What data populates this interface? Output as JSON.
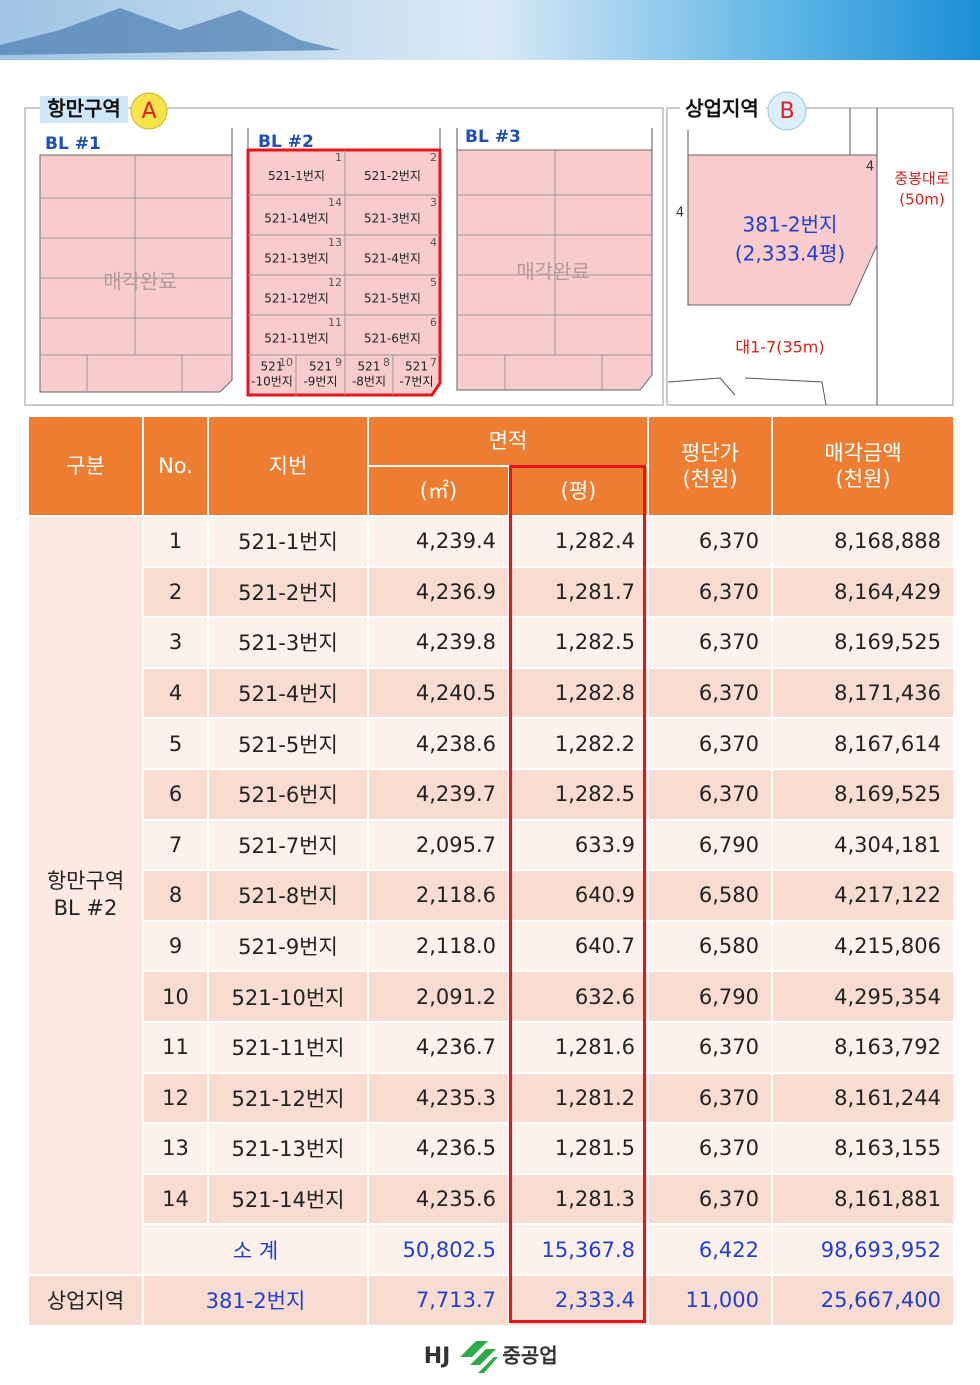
{
  "map_a": {
    "label": "항만구역",
    "badge": "A",
    "blocks": [
      {
        "name": "BL #1",
        "status": "매각완료"
      },
      {
        "name": "BL #2"
      },
      {
        "name": "BL #3",
        "status": "매각완료"
      }
    ],
    "lots": [
      {
        "number": "1",
        "label": [
          "521-1번지"
        ]
      },
      {
        "number": "2",
        "label": [
          "521-2번지"
        ]
      },
      {
        "number": "3",
        "label": [
          "521-3번지"
        ]
      },
      {
        "number": "4",
        "label": [
          "521-4번지"
        ]
      },
      {
        "number": "5",
        "label": [
          "521-5번지"
        ]
      },
      {
        "number": "6",
        "label": [
          "521-6번지"
        ]
      },
      {
        "number": "7",
        "label": [
          "521",
          "-7번지"
        ]
      },
      {
        "number": "8",
        "label": [
          "521",
          "-8번지"
        ]
      },
      {
        "number": "9",
        "label": [
          "521",
          "-9번지"
        ]
      },
      {
        "number": "10",
        "label": [
          "521",
          "-10번지"
        ]
      },
      {
        "number": "11",
        "label": [
          "521-11번지"
        ]
      },
      {
        "number": "12",
        "label": [
          "521-12번지"
        ]
      },
      {
        "number": "13",
        "label": [
          "521-13번지"
        ]
      },
      {
        "number": "14",
        "label": [
          "521-14번지"
        ]
      }
    ]
  },
  "map_b": {
    "label": "상업지역",
    "badge": "B",
    "lot": "381-2번지",
    "area": "(2,333.4평)",
    "road_main": "중봉대로",
    "road_main_width": "(50m)",
    "road_side": "대1-7(35m)",
    "edge_marks": [
      "4",
      "4"
    ]
  },
  "table": {
    "headers": {
      "category": "구분",
      "no": "No.",
      "lot": "지번",
      "area": "면적",
      "area_m2": "(㎡)",
      "area_pyeong": "(평)",
      "unit_price": [
        "평단가",
        "(천원)"
      ],
      "amount": [
        "매각금액",
        "(천원)"
      ]
    },
    "group": [
      "항만구역",
      "BL #2"
    ],
    "rows": [
      [
        "1",
        "521-1번지",
        "4,239.4",
        "1,282.4",
        "6,370",
        "8,168,888"
      ],
      [
        "2",
        "521-2번지",
        "4,236.9",
        "1,281.7",
        "6,370",
        "8,164,429"
      ],
      [
        "3",
        "521-3번지",
        "4,239.8",
        "1,282.5",
        "6,370",
        "8,169,525"
      ],
      [
        "4",
        "521-4번지",
        "4,240.5",
        "1,282.8",
        "6,370",
        "8,171,436"
      ],
      [
        "5",
        "521-5번지",
        "4,238.6",
        "1,282.2",
        "6,370",
        "8,167,614"
      ],
      [
        "6",
        "521-6번지",
        "4,239.7",
        "1,282.5",
        "6,370",
        "8,169,525"
      ],
      [
        "7",
        "521-7번지",
        "2,095.7",
        "633.9",
        "6,790",
        "4,304,181"
      ],
      [
        "8",
        "521-8번지",
        "2,118.6",
        "640.9",
        "6,580",
        "4,217,122"
      ],
      [
        "9",
        "521-9번지",
        "2,118.0",
        "640.7",
        "6,580",
        "4,215,806"
      ],
      [
        "10",
        "521-10번지",
        "2,091.2",
        "632.6",
        "6,790",
        "4,295,354"
      ],
      [
        "11",
        "521-11번지",
        "4,236.7",
        "1,281.6",
        "6,370",
        "8,163,792"
      ],
      [
        "12",
        "521-12번지",
        "4,235.3",
        "1,281.2",
        "6,370",
        "8,161,244"
      ],
      [
        "13",
        "521-13번지",
        "4,236.5",
        "1,281.5",
        "6,370",
        "8,163,155"
      ],
      [
        "14",
        "521-14번지",
        "4,235.6",
        "1,281.3",
        "6,370",
        "8,161,881"
      ]
    ],
    "subtotal": {
      "label": "소 계",
      "values": [
        "50,802.5",
        "15,367.8",
        "6,422",
        "98,693,952"
      ]
    },
    "commercial": {
      "category": "상업지역",
      "lot": "381-2번지",
      "values": [
        "7,713.7",
        "2,333.4",
        "11,000",
        "25,667,400"
      ]
    }
  },
  "footer": {
    "logo": "HJ",
    "company": "중공업"
  }
}
